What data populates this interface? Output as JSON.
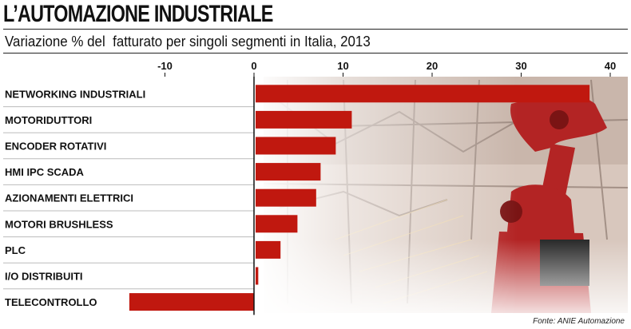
{
  "title": "L’AUTOMAZIONE INDUSTRIALE",
  "subtitle": "Variazione % del  fatturato per singoli segmenti in Italia, 2013",
  "source": "Fonte: ANIE Automazione",
  "colors": {
    "bar": "#c0180f",
    "text": "#111111",
    "photo_bg": "#d9c9c0"
  },
  "chart_data": {
    "type": "bar",
    "orientation": "horizontal",
    "title": "L’AUTOMAZIONE INDUSTRIALE",
    "subtitle": "Variazione % del  fatturato per singoli segmenti in Italia, 2013",
    "xlabel": "",
    "ylabel": "",
    "xlim": [
      -14,
      42
    ],
    "ticks": [
      -10,
      0,
      10,
      20,
      30,
      40
    ],
    "categories": [
      "NETWORKING INDUSTRIALI",
      "MOTORIDUTTORI",
      "ENCODER ROTATIVI",
      "HMI IPC SCADA",
      "AZIONAMENTI ELETTRICI",
      "MOTORI BRUSHLESS",
      "PLC",
      "I/O DISTRIBUITI",
      "TELECONTROLLO"
    ],
    "values": [
      37.5,
      10.8,
      9.0,
      7.3,
      6.8,
      4.7,
      2.8,
      0.3,
      -14.0
    ],
    "grid": false,
    "legend": "none"
  }
}
